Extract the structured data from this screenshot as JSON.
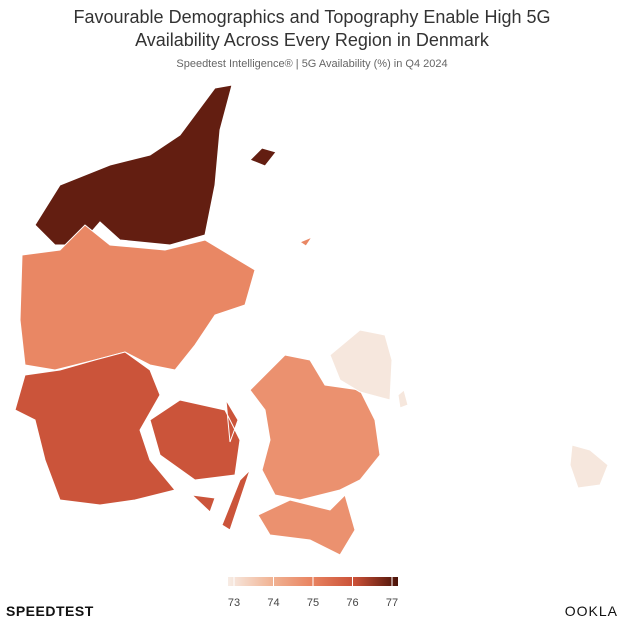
{
  "chart_data": {
    "type": "choropleth",
    "title": "Favourable Demographics and Topography Enable High 5G Availability Across Every Region in Denmark",
    "subtitle": "Speedtest Intelligence® | 5G Availability (%) in Q4 2024",
    "values": [
      76.8,
      74.9,
      75.9,
      74.7,
      73.1
    ],
    "clim": [
      73,
      77
    ],
    "cticks": [
      73,
      74,
      75,
      76,
      77
    ],
    "colorscale": [
      "#f7ece5",
      "#f1b596",
      "#e8825f",
      "#c84f36",
      "#4a1208"
    ],
    "brand_left": "SPEEDTEST",
    "brand_right": "OOKLA"
  }
}
